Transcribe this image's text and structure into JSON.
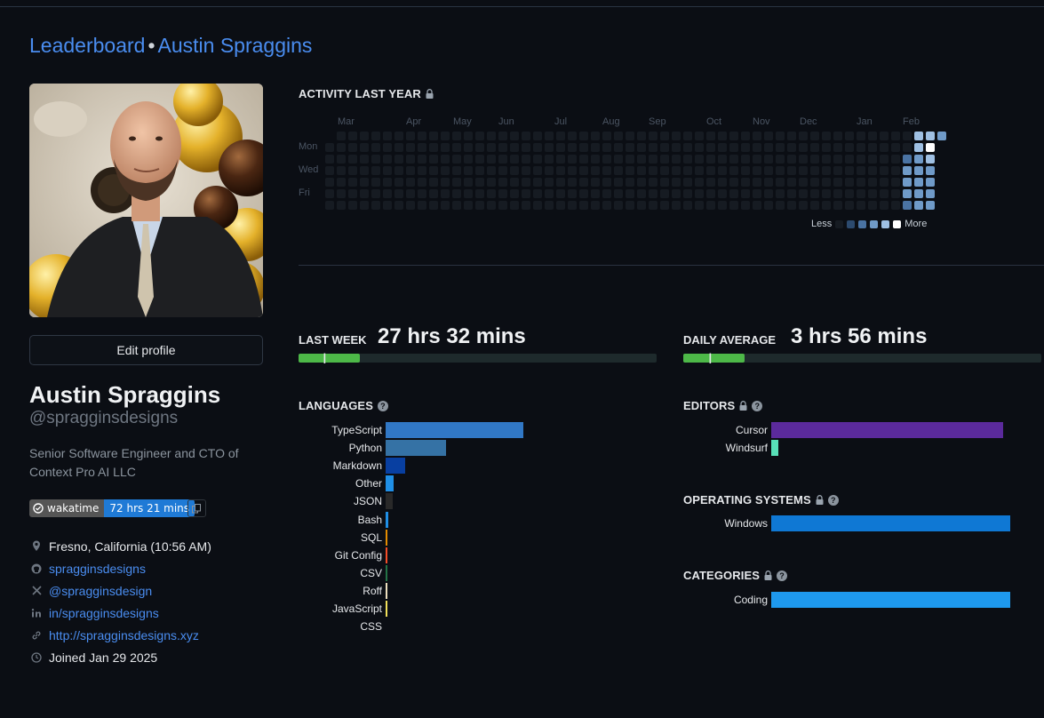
{
  "breadcrumb": {
    "root": "Leaderboard",
    "separator": "•",
    "current": "Austin Spraggins"
  },
  "profile": {
    "edit_label": "Edit profile",
    "name": "Austin Spraggins",
    "handle": "@spragginsdesigns",
    "bio": "Senior Software Engineer and CTO of Context Pro AI LLC",
    "badge": {
      "left": "wakatime",
      "right": "72 hrs 21 mins"
    },
    "info": [
      {
        "icon": "location-pin-icon",
        "text": "Fresno, California (10:56 AM)",
        "link": false
      },
      {
        "icon": "github-icon",
        "text": "spragginsdesigns",
        "link": true
      },
      {
        "icon": "x-icon",
        "text": "@spragginsdesign",
        "link": true
      },
      {
        "icon": "linkedin-icon",
        "text": "in/spragginsdesigns",
        "link": true
      },
      {
        "icon": "link-icon",
        "text": "http://spragginsdesigns.xyz",
        "link": true
      },
      {
        "icon": "clock-icon",
        "text": "Joined Jan 29 2025",
        "link": false
      }
    ]
  },
  "activity": {
    "title": "ACTIVITY LAST YEAR",
    "months": [
      "Mar",
      "Apr",
      "May",
      "Jun",
      "Jul",
      "Aug",
      "Sep",
      "Oct",
      "Nov",
      "Dec",
      "Jan",
      "Feb"
    ],
    "days": [
      "Mon",
      "Wed",
      "Fri"
    ],
    "legend_less": "Less",
    "legend_more": "More",
    "colors": [
      "#161b22",
      "#2c4a6e",
      "#4a73a3",
      "#6f9ac8",
      "#9fc0e3",
      "#ffffff"
    ]
  },
  "last_week": {
    "label": "LAST WEEK",
    "value": "27 hrs 32 mins",
    "progress": 0.17
  },
  "daily_average": {
    "label": "DAILY AVERAGE",
    "value": "3 hrs 56 mins",
    "progress": 0.17
  },
  "languages": {
    "title": "LANGUAGES",
    "items": [
      {
        "name": "TypeScript",
        "value": 100,
        "color": "#3178c6"
      },
      {
        "name": "Python",
        "value": 44,
        "color": "#3572a5"
      },
      {
        "name": "Markdown",
        "value": 14,
        "color": "#083fa1"
      },
      {
        "name": "Other",
        "value": 6,
        "color": "#1f8fe6"
      },
      {
        "name": "JSON",
        "value": 5,
        "color": "#292929"
      },
      {
        "name": "Bash",
        "value": 2,
        "color": "#1f8fe6"
      },
      {
        "name": "SQL",
        "value": 1,
        "color": "#e38c00"
      },
      {
        "name": "Git Config",
        "value": 1,
        "color": "#f44d27"
      },
      {
        "name": "CSV",
        "value": 1,
        "color": "#237346"
      },
      {
        "name": "Roff",
        "value": 1,
        "color": "#ecdebe"
      },
      {
        "name": "JavaScript",
        "value": 1,
        "color": "#f1e05a"
      },
      {
        "name": "CSS",
        "value": 0,
        "color": "#563d7c"
      }
    ]
  },
  "editors": {
    "title": "EDITORS",
    "items": [
      {
        "name": "Cursor",
        "value": 100,
        "color": "#5b2a9c"
      },
      {
        "name": "Windsurf",
        "value": 3,
        "color": "#58e0b8"
      }
    ]
  },
  "operating_systems": {
    "title": "OPERATING SYSTEMS",
    "items": [
      {
        "name": "Windows",
        "value": 100,
        "color": "#0f78d4"
      }
    ]
  },
  "categories": {
    "title": "CATEGORIES",
    "items": [
      {
        "name": "Coding",
        "value": 100,
        "color": "#1e99ee"
      }
    ]
  }
}
